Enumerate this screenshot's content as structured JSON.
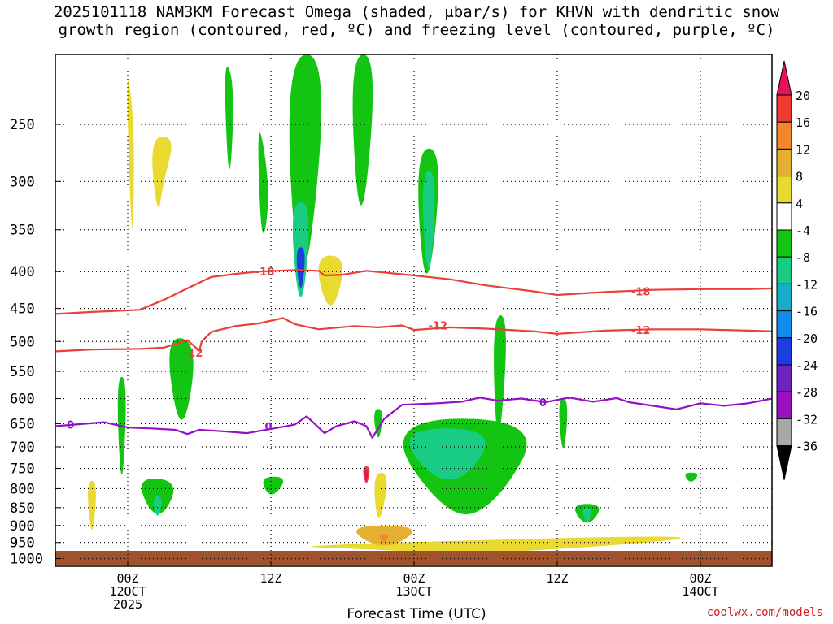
{
  "title_line1": "2025101118 NAM3KM Forecast Omega (shaded, μbar/s) for KHVN with dendritic snow",
  "title_line2": "growth region (contoured, red, ºC) and freezing level (contoured, purple, ºC)",
  "credit": "coolwx.com/models",
  "chart_data": {
    "type": "heatmap",
    "title": "2025101118 NAM3KM Forecast Omega (shaded, μbar/s) for KHVN with dendritic snow growth region (contoured, red, ºC) and freezing level (contoured, purple, ºC)",
    "xlabel": "Forecast Time (UTC)",
    "ylabel": "",
    "y_scale": "pressure (hPa, inverted)",
    "y_ticks": [
      250,
      300,
      350,
      400,
      450,
      500,
      550,
      600,
      650,
      700,
      750,
      800,
      850,
      900,
      950,
      1000
    ],
    "x_ticks": [
      {
        "hour": 0,
        "label1": "00Z",
        "label2": "12OCT",
        "label3": "2025"
      },
      {
        "hour": 12,
        "label1": "12Z",
        "label2": "",
        "label3": ""
      },
      {
        "hour": 24,
        "label1": "00Z",
        "label2": "13OCT",
        "label3": ""
      },
      {
        "hour": 36,
        "label1": "12Z",
        "label2": "",
        "label3": ""
      },
      {
        "hour": 48,
        "label1": "00Z",
        "label2": "14OCT",
        "label3": ""
      }
    ],
    "x_range_hours": [
      -6,
      54
    ],
    "p_range": [
      200,
      1025
    ],
    "grid": "dotted",
    "colorbar": {
      "labels": [
        "20",
        "16",
        "12",
        "8",
        "4",
        "-4",
        "-8",
        "-12",
        "-16",
        "-20",
        "-24",
        "-28",
        "-32",
        "-36"
      ],
      "colors": [
        "#e8115f",
        "#ee3a31",
        "#f1862b",
        "#e3b031",
        "#e9d931",
        "#ffffff",
        "#13c412",
        "#19cc83",
        "#17acc7",
        "#128bea",
        "#1c3ee0",
        "#6f22c0",
        "#9b10c3",
        "#a8a8a8",
        "#000000"
      ]
    },
    "terrain_color": "#a0522d",
    "contour_colors": {
      "dendritic": "#e8403a",
      "freezing": "#9410c8"
    },
    "contours": [
      {
        "name": "-18",
        "kind": "dendritic",
        "points": [
          [
            -6,
            458
          ],
          [
            -3,
            455
          ],
          [
            1,
            452
          ],
          [
            3,
            438
          ],
          [
            5,
            422
          ],
          [
            7,
            407
          ],
          [
            9,
            403
          ],
          [
            11,
            400
          ],
          [
            14,
            398
          ],
          [
            16,
            399
          ],
          [
            16.5,
            405
          ],
          [
            18,
            404
          ],
          [
            20,
            399
          ],
          [
            22,
            402
          ],
          [
            24,
            405
          ],
          [
            27,
            410
          ],
          [
            30,
            418
          ],
          [
            34,
            426
          ],
          [
            36,
            431
          ],
          [
            40,
            427
          ],
          [
            44,
            424
          ],
          [
            48,
            423
          ],
          [
            52,
            423
          ],
          [
            54,
            422
          ]
        ],
        "labels": [
          [
            11.5,
            400
          ],
          [
            43,
            426
          ]
        ]
      },
      {
        "name": "-12",
        "kind": "dendritic",
        "points": [
          [
            -6,
            516
          ],
          [
            -3,
            513
          ],
          [
            1,
            512
          ],
          [
            3,
            510
          ],
          [
            5,
            498
          ],
          [
            6,
            515
          ],
          [
            6.2,
            500
          ],
          [
            7,
            485
          ],
          [
            9,
            476
          ],
          [
            11,
            472
          ],
          [
            13,
            464
          ],
          [
            14,
            473
          ],
          [
            16,
            481
          ],
          [
            19,
            476
          ],
          [
            21,
            478
          ],
          [
            23,
            475
          ],
          [
            24,
            482
          ],
          [
            27,
            478
          ],
          [
            30,
            480
          ],
          [
            34,
            484
          ],
          [
            36,
            488
          ],
          [
            40,
            483
          ],
          [
            44,
            481
          ],
          [
            48,
            481
          ],
          [
            52,
            483
          ],
          [
            54,
            484
          ]
        ],
        "labels": [
          [
            5.5,
            518
          ],
          [
            26,
            475
          ],
          [
            43,
            482
          ]
        ]
      },
      {
        "name": "0",
        "kind": "freezing",
        "points": [
          [
            -6,
            655
          ],
          [
            -4,
            651
          ],
          [
            -2,
            647
          ],
          [
            0,
            658
          ],
          [
            2,
            660
          ],
          [
            4,
            663
          ],
          [
            5,
            672
          ],
          [
            6,
            663
          ],
          [
            8,
            666
          ],
          [
            10,
            670
          ],
          [
            12,
            661
          ],
          [
            14,
            652
          ],
          [
            15,
            635
          ],
          [
            16.5,
            670
          ],
          [
            17.5,
            655
          ],
          [
            19,
            645
          ],
          [
            20,
            655
          ],
          [
            20.5,
            680
          ],
          [
            21.5,
            640
          ],
          [
            23,
            612
          ],
          [
            26,
            609
          ],
          [
            28,
            606
          ],
          [
            29.5,
            598
          ],
          [
            31,
            604
          ],
          [
            33,
            600
          ],
          [
            35,
            607
          ],
          [
            37,
            598
          ],
          [
            39,
            606
          ],
          [
            41,
            599
          ],
          [
            42,
            607
          ],
          [
            44,
            614
          ],
          [
            46,
            621
          ],
          [
            48,
            609
          ],
          [
            50,
            614
          ],
          [
            52,
            609
          ],
          [
            54,
            600
          ]
        ],
        "labels": [
          [
            -4.8,
            652
          ],
          [
            11.8,
            655
          ],
          [
            34.8,
            607
          ]
        ]
      }
    ],
    "shaded_regions": [
      {
        "bin": "4 to 8",
        "t": [
          -0.2,
          0.4,
          0.6
        ],
        "p": [
          200,
          400,
          250
        ]
      },
      {
        "bin": "4 to 8",
        "t": [
          1.8,
          4.0,
          2.5,
          3.0
        ],
        "p": [
          260,
          260,
          340,
          300
        ]
      },
      {
        "bin": "-8 to -4",
        "t": [
          8.0,
          9.0,
          8.5
        ],
        "p": [
          200,
          220,
          320
        ]
      },
      {
        "bin": "-8 to -4",
        "t": [
          10.8,
          12.0,
          11.2
        ],
        "p": [
          235,
          310,
          380
        ]
      },
      {
        "bin": "-8 to -4",
        "t": [
          13.0,
          17.0,
          14.5
        ],
        "p": [
          200,
          200,
          500
        ]
      },
      {
        "bin": "-12 to -8",
        "t": [
          13.5,
          15.5,
          14.5
        ],
        "p": [
          320,
          320,
          480
        ]
      },
      {
        "bin": "-24 to -20",
        "t": [
          14.0,
          15.0,
          14.5
        ],
        "p": [
          370,
          370,
          440
        ]
      },
      {
        "bin": "-8 to -4",
        "t": [
          18.5,
          21.0,
          19.5
        ],
        "p": [
          200,
          200,
          380
        ]
      },
      {
        "bin": "-8 to -4",
        "t": [
          24.0,
          26.5,
          25.0
        ],
        "p": [
          270,
          270,
          460
        ]
      },
      {
        "bin": "-12 to -8",
        "t": [
          24.5,
          26.0,
          25.2
        ],
        "p": [
          290,
          290,
          440
        ]
      },
      {
        "bin": "4 to 8",
        "t": [
          15.5,
          18.5,
          17.0
        ],
        "p": [
          380,
          380,
          470
        ]
      },
      {
        "bin": "-8 to -4",
        "t": [
          3.0,
          6.0,
          4.5
        ],
        "p": [
          490,
          500,
          700
        ]
      },
      {
        "bin": "-8 to -4",
        "t": [
          -1.0,
          0.0,
          -0.5
        ],
        "p": [
          560,
          560,
          850
        ]
      },
      {
        "bin": "-8 to -4",
        "t": [
          21.0,
          35.0,
          27.0,
          31.0
        ],
        "p": [
          640,
          640,
          890,
          840
        ]
      },
      {
        "bin": "-12 to -8",
        "t": [
          22.0,
          31.5,
          27.0
        ],
        "p": [
          660,
          660,
          820
        ]
      },
      {
        "bin": "-8 to -4",
        "t": [
          30.5,
          32.0,
          31.0
        ],
        "p": [
          460,
          460,
          760
        ]
      },
      {
        "bin": "-8 to -4",
        "t": [
          0.5,
          4.5,
          2.5
        ],
        "p": [
          770,
          780,
          900
        ]
      },
      {
        "bin": "-12 to -8",
        "t": [
          2.0,
          3.0,
          2.5
        ],
        "p": [
          820,
          820,
          890
        ]
      },
      {
        "bin": "-8 to -4",
        "t": [
          11.0,
          13.5,
          12.0
        ],
        "p": [
          770,
          770,
          830
        ]
      },
      {
        "bin": "-8 to -4",
        "t": [
          37.0,
          40.0,
          38.5
        ],
        "p": [
          840,
          840,
          910
        ]
      },
      {
        "bin": "-12 to -8",
        "t": [
          38.0,
          39.0,
          38.5
        ],
        "p": [
          850,
          850,
          905
        ]
      },
      {
        "bin": "-8 to -4",
        "t": [
          36.0,
          37.0,
          36.5
        ],
        "p": [
          600,
          600,
          740
        ]
      },
      {
        "bin": "-8 to -4",
        "t": [
          20.5,
          21.5,
          21.0
        ],
        "p": [
          620,
          620,
          700
        ]
      },
      {
        "bin": "-8 to -4",
        "t": [
          46.5,
          48.0,
          47.2
        ],
        "p": [
          760,
          760,
          790
        ]
      },
      {
        "bin": "16 to 20",
        "t": [
          19.6,
          20.4,
          20.0
        ],
        "p": [
          745,
          745,
          800
        ]
      },
      {
        "bin": "20+",
        "t": [
          19.8,
          20.2,
          20.0
        ],
        "p": [
          755,
          755,
          790
        ]
      },
      {
        "bin": "4 to 8",
        "t": [
          12.0,
          54.0,
          30.0,
          20.0
        ],
        "p": [
          960,
          920,
          990,
          970
        ]
      },
      {
        "bin": "8 to 12",
        "t": [
          18.0,
          25.0,
          21.5
        ],
        "p": [
          900,
          900,
          980
        ]
      },
      {
        "bin": "12 to 16",
        "t": [
          21.0,
          22.0,
          21.5
        ],
        "p": [
          925,
          925,
          955
        ]
      },
      {
        "bin": "4 to 8",
        "t": [
          -3.5,
          -2.5,
          -3.0
        ],
        "p": [
          780,
          780,
          960
        ]
      },
      {
        "bin": "4 to 8",
        "t": [
          20.5,
          22.0,
          21.0
        ],
        "p": [
          760,
          760,
          920
        ]
      }
    ]
  }
}
